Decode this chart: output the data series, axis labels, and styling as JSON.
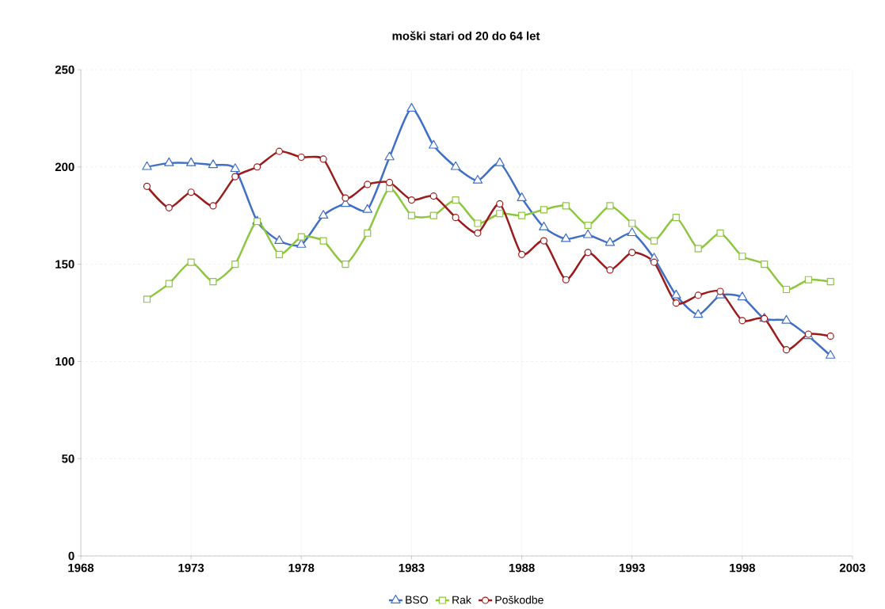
{
  "chart_data": {
    "type": "line",
    "title": "moški stari od 20 do 64 let",
    "x": [
      1971,
      1972,
      1973,
      1974,
      1975,
      1976,
      1977,
      1978,
      1979,
      1980,
      1981,
      1982,
      1983,
      1984,
      1985,
      1986,
      1987,
      1988,
      1989,
      1990,
      1991,
      1992,
      1993,
      1994,
      1995,
      1996,
      1997,
      1998,
      1999,
      2000,
      2001,
      2002
    ],
    "series": [
      {
        "name": "BSO",
        "color": "#3f6fc6",
        "marker": "triangle",
        "values": [
          200,
          202,
          202,
          201,
          199,
          172,
          162,
          160,
          175,
          181,
          178,
          205,
          230,
          211,
          200,
          193,
          202,
          184,
          169,
          163,
          165,
          161,
          166,
          153,
          134,
          124,
          134,
          133,
          122,
          121,
          113,
          103
        ]
      },
      {
        "name": "Rak",
        "color": "#8dc63f",
        "marker": "square",
        "values": [
          132,
          140,
          151,
          141,
          150,
          172,
          155,
          164,
          162,
          150,
          166,
          189,
          175,
          175,
          183,
          171,
          176,
          175,
          178,
          180,
          170,
          180,
          171,
          162,
          174,
          158,
          166,
          154,
          150,
          137,
          142,
          141
        ]
      },
      {
        "name": "Poškodbe",
        "color": "#9b1c1c",
        "marker": "circle",
        "values": [
          190,
          179,
          187,
          180,
          195,
          200,
          208,
          205,
          204,
          184,
          191,
          192,
          183,
          185,
          174,
          166,
          181,
          155,
          162,
          142,
          156,
          147,
          156,
          151,
          130,
          134,
          136,
          121,
          122,
          106,
          114,
          113
        ]
      }
    ],
    "xlim": [
      1968,
      2003
    ],
    "xticks": [
      1968,
      1973,
      1978,
      1983,
      1988,
      1993,
      1998,
      2003
    ],
    "ylim": [
      0,
      250
    ],
    "yticks": [
      0,
      50,
      100,
      150,
      200,
      250
    ],
    "grid": true,
    "legend": "bottom",
    "line_style": "solid"
  }
}
